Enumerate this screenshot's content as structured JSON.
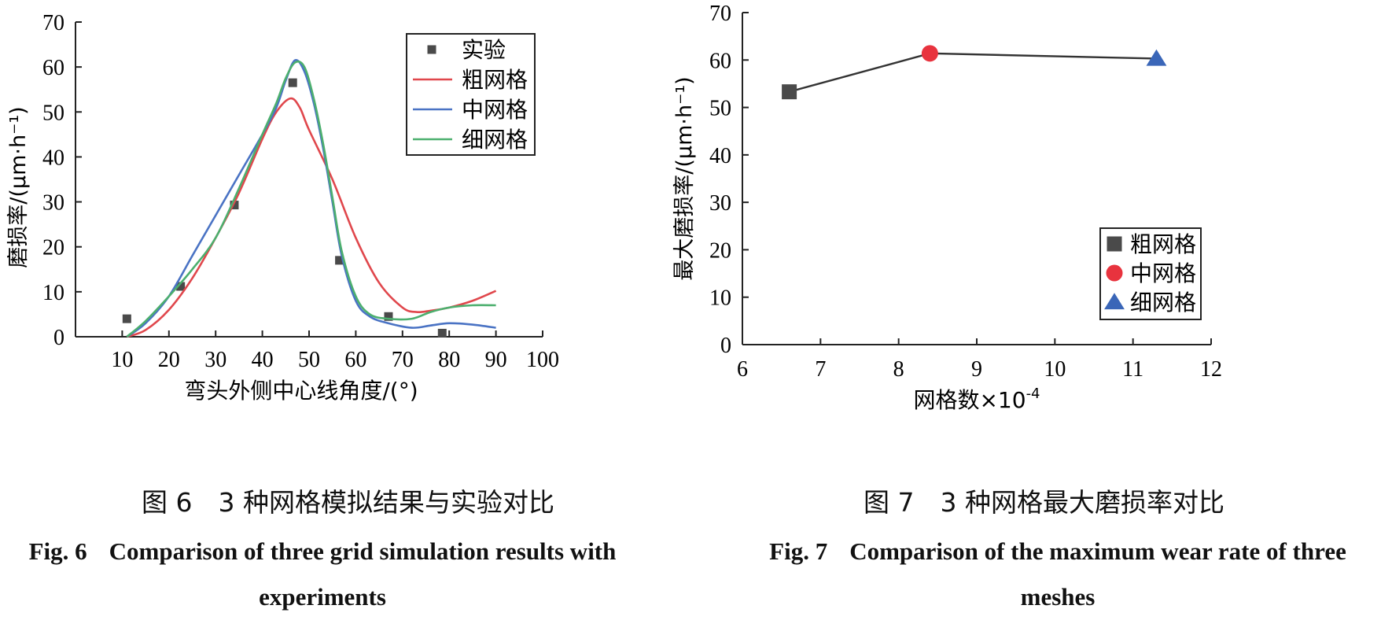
{
  "figures": [
    {
      "id": "fig6",
      "caption_cn": "图 6　3 种网格模拟结果与实验对比",
      "caption_en_label": "Fig. 6",
      "caption_en": "Comparison of three grid simulation results with experiments",
      "chart_data": {
        "type": "line",
        "xlabel": "弯头外侧中心线角度/(°)",
        "ylabel": "磨损率/(μm·h⁻¹)",
        "xlim": [
          0,
          100
        ],
        "ylim": [
          0,
          70
        ],
        "x_ticks": [
          10,
          20,
          30,
          40,
          50,
          60,
          70,
          80,
          90,
          100
        ],
        "y_ticks": [
          0,
          10,
          20,
          30,
          40,
          50,
          60,
          70
        ],
        "legend_position": "top-right",
        "series": [
          {
            "name": "实验",
            "kind": "scatter",
            "marker": "square",
            "color": "#4a4a4a",
            "points": [
              [
                11,
                4
              ],
              [
                22.5,
                11.2
              ],
              [
                34,
                29.3
              ],
              [
                46.5,
                56.5
              ],
              [
                56.5,
                17
              ],
              [
                67,
                4.5
              ],
              [
                78.5,
                0.8
              ]
            ]
          },
          {
            "name": "粗网格",
            "kind": "line",
            "color": "#e0474c",
            "points": [
              [
                11,
                0
              ],
              [
                15,
                1.5
              ],
              [
                20,
                6
              ],
              [
                25,
                13
              ],
              [
                30,
                22
              ],
              [
                35,
                32
              ],
              [
                40,
                44
              ],
              [
                43,
                50
              ],
              [
                46,
                53
              ],
              [
                48,
                51
              ],
              [
                50,
                46
              ],
              [
                55,
                35
              ],
              [
                60,
                22
              ],
              [
                65,
                12
              ],
              [
                70,
                6.5
              ],
              [
                73,
                5.5
              ],
              [
                76,
                5.8
              ],
              [
                80,
                6.5
              ],
              [
                85,
                8
              ],
              [
                90,
                10.2
              ]
            ]
          },
          {
            "name": "中网格",
            "kind": "line",
            "color": "#4a73c4",
            "points": [
              [
                11,
                0
              ],
              [
                15,
                3
              ],
              [
                20,
                9
              ],
              [
                25,
                18
              ],
              [
                30,
                27
              ],
              [
                35,
                36
              ],
              [
                40,
                45
              ],
              [
                43,
                51
              ],
              [
                45,
                57
              ],
              [
                47,
                61.5
              ],
              [
                49,
                59
              ],
              [
                51,
                52
              ],
              [
                53,
                42
              ],
              [
                55,
                30
              ],
              [
                57,
                18
              ],
              [
                60,
                8
              ],
              [
                63,
                4.5
              ],
              [
                67,
                3
              ],
              [
                72,
                2
              ],
              [
                76,
                2.5
              ],
              [
                80,
                3
              ],
              [
                85,
                2.7
              ],
              [
                90,
                2
              ]
            ]
          },
          {
            "name": "细网格",
            "kind": "line",
            "color": "#4caf6e",
            "points": [
              [
                11,
                0
              ],
              [
                15,
                3.5
              ],
              [
                20,
                9
              ],
              [
                25,
                15
              ],
              [
                30,
                22
              ],
              [
                35,
                33
              ],
              [
                40,
                45
              ],
              [
                43,
                52
              ],
              [
                45,
                57.5
              ],
              [
                47,
                61
              ],
              [
                49,
                60
              ],
              [
                51,
                53
              ],
              [
                53,
                43
              ],
              [
                55,
                31
              ],
              [
                57,
                19
              ],
              [
                60,
                9
              ],
              [
                63,
                5
              ],
              [
                67,
                4
              ],
              [
                72,
                4
              ],
              [
                76,
                5.5
              ],
              [
                80,
                6.5
              ],
              [
                85,
                7
              ],
              [
                90,
                7
              ]
            ]
          }
        ]
      }
    },
    {
      "id": "fig7",
      "caption_cn": "图 7　3 种网格最大磨损率对比",
      "caption_en_label": "Fig. 7",
      "caption_en": "Comparison of the maximum wear rate of three meshes",
      "chart_data": {
        "type": "scatter",
        "xlabel": "网格数×10",
        "xlabel_sup": "-4",
        "ylabel": "最大磨损率/(μm·h⁻¹)",
        "xlim": [
          6,
          12
        ],
        "ylim": [
          0,
          70
        ],
        "x_ticks": [
          6,
          7,
          8,
          9,
          10,
          11,
          12
        ],
        "y_ticks": [
          0,
          10,
          20,
          30,
          40,
          50,
          60,
          70
        ],
        "legend_position": "bottom-right",
        "connect_points": true,
        "series": [
          {
            "name": "粗网格",
            "marker": "square",
            "color": "#4a4a4a",
            "x": 6.6,
            "y": 53.3
          },
          {
            "name": "中网格",
            "marker": "circle",
            "color": "#e8333e",
            "x": 8.4,
            "y": 61.4
          },
          {
            "name": "细网格",
            "marker": "triangle",
            "color": "#3a66b8",
            "x": 11.3,
            "y": 60.3
          }
        ]
      }
    }
  ]
}
